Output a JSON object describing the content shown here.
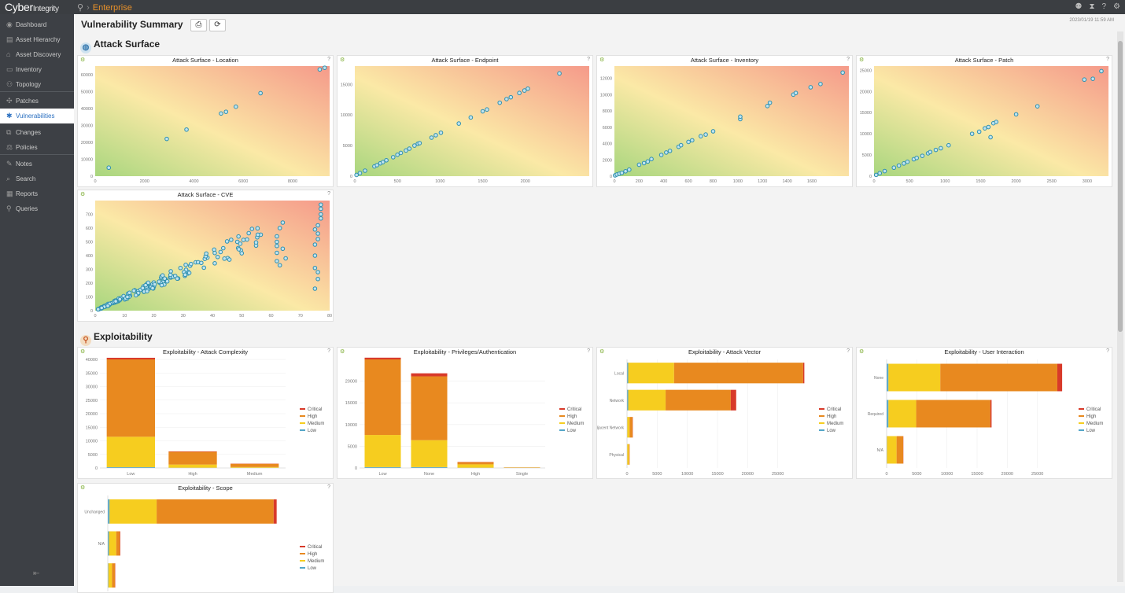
{
  "app": {
    "logo_main": "Cyber",
    "logo_sub": "Integrity",
    "breadcrumb": "Enterprise",
    "timestamp": "2023/01/19 11:59 AM"
  },
  "icons": {
    "pin": "map-pin-icon",
    "top": [
      "user-icon",
      "hourglass-icon",
      "help-icon",
      "settings-icon"
    ]
  },
  "sidebar": {
    "items": [
      {
        "label": "Dashboard",
        "icon": "◉"
      },
      {
        "label": "Asset Hierarchy",
        "icon": "▤"
      },
      {
        "label": "Asset Discovery",
        "icon": "⌂"
      },
      {
        "label": "Inventory",
        "icon": "▭"
      },
      {
        "label": "Topology",
        "icon": "⚇"
      },
      {
        "label": "Patches",
        "icon": "✣"
      },
      {
        "label": "Vulnerabilities",
        "icon": "✱"
      },
      {
        "label": "Changes",
        "icon": "⧉"
      },
      {
        "label": "Policies",
        "icon": "⚖"
      },
      {
        "label": "Notes",
        "icon": "✎"
      },
      {
        "label": "Search",
        "icon": "⌕"
      },
      {
        "label": "Reports",
        "icon": "▦"
      },
      {
        "label": "Queries",
        "icon": "⚲"
      }
    ],
    "active": "Vulnerabilities",
    "collapse": "⇤"
  },
  "page": {
    "title": "Vulnerability Summary",
    "print_icon": "⎙",
    "refresh_icon": "⟳"
  },
  "sections": {
    "attack": "Attack Surface",
    "exploit": "Exploitability"
  },
  "legend": [
    "Critical",
    "High",
    "Medium",
    "Low"
  ],
  "colors": {
    "critical": "#d83a2a",
    "high": "#e8891f",
    "medium": "#f6cd1f",
    "low": "#53a6c8",
    "point": "#2e8fb0"
  },
  "scatter_charts": [
    {
      "title": "Attack Surface - Location",
      "xlim": [
        0,
        9500
      ],
      "ylim": [
        0,
        65000
      ],
      "xticks": [
        0,
        2000,
        4000,
        6000,
        8000
      ],
      "yticks": [
        0,
        10000,
        20000,
        30000,
        40000,
        50000,
        60000
      ],
      "points": [
        [
          550,
          5000
        ],
        [
          2900,
          22000
        ],
        [
          3700,
          27500
        ],
        [
          5100,
          37000
        ],
        [
          5300,
          38000
        ],
        [
          5700,
          41000
        ],
        [
          6700,
          49000
        ],
        [
          9100,
          63000
        ],
        [
          9300,
          64000
        ]
      ]
    },
    {
      "title": "Attack Surface - Endpoint",
      "xlim": [
        0,
        2750
      ],
      "ylim": [
        0,
        18000
      ],
      "xticks": [
        0,
        500,
        1000,
        1500,
        2000
      ],
      "yticks": [
        0,
        5000,
        10000,
        15000
      ],
      "points": [
        [
          20,
          200
        ],
        [
          60,
          500
        ],
        [
          120,
          900
        ],
        [
          230,
          1600
        ],
        [
          260,
          1800
        ],
        [
          300,
          2100
        ],
        [
          330,
          2300
        ],
        [
          370,
          2600
        ],
        [
          450,
          3100
        ],
        [
          500,
          3500
        ],
        [
          540,
          3800
        ],
        [
          600,
          4200
        ],
        [
          640,
          4500
        ],
        [
          700,
          5000
        ],
        [
          740,
          5300
        ],
        [
          760,
          5400
        ],
        [
          900,
          6300
        ],
        [
          950,
          6700
        ],
        [
          1010,
          7100
        ],
        [
          1220,
          8600
        ],
        [
          1360,
          9600
        ],
        [
          1500,
          10600
        ],
        [
          1550,
          10900
        ],
        [
          1700,
          12000
        ],
        [
          1780,
          12600
        ],
        [
          1830,
          12900
        ],
        [
          1930,
          13600
        ],
        [
          1990,
          14000
        ],
        [
          2030,
          14300
        ],
        [
          2400,
          16800
        ]
      ]
    },
    {
      "title": "Attack Surface - Inventory",
      "xlim": [
        0,
        1900
      ],
      "ylim": [
        0,
        13500
      ],
      "xticks": [
        0,
        200,
        400,
        600,
        800,
        1000,
        1200,
        1400,
        1600
      ],
      "yticks": [
        0,
        2000,
        4000,
        6000,
        8000,
        10000,
        12000
      ],
      "points": [
        [
          5,
          100
        ],
        [
          20,
          200
        ],
        [
          40,
          300
        ],
        [
          60,
          400
        ],
        [
          90,
          600
        ],
        [
          120,
          800
        ],
        [
          200,
          1400
        ],
        [
          240,
          1600
        ],
        [
          270,
          1800
        ],
        [
          300,
          2100
        ],
        [
          380,
          2600
        ],
        [
          420,
          2900
        ],
        [
          450,
          3100
        ],
        [
          520,
          3600
        ],
        [
          540,
          3800
        ],
        [
          600,
          4200
        ],
        [
          630,
          4400
        ],
        [
          700,
          4900
        ],
        [
          740,
          5100
        ],
        [
          800,
          5500
        ],
        [
          1020,
          7000
        ],
        [
          1020,
          7300
        ],
        [
          1240,
          8600
        ],
        [
          1260,
          9000
        ],
        [
          1450,
          10000
        ],
        [
          1470,
          10200
        ],
        [
          1590,
          10900
        ],
        [
          1670,
          11300
        ],
        [
          1850,
          12700
        ]
      ]
    },
    {
      "title": "Attack Surface - Patch",
      "xlim": [
        0,
        3300
      ],
      "ylim": [
        0,
        26000
      ],
      "xticks": [
        0,
        500,
        1000,
        1500,
        2000,
        2500,
        3000
      ],
      "yticks": [
        0,
        5000,
        10000,
        15000,
        20000,
        25000
      ],
      "points": [
        [
          30,
          300
        ],
        [
          80,
          700
        ],
        [
          150,
          1200
        ],
        [
          280,
          2000
        ],
        [
          350,
          2500
        ],
        [
          420,
          3000
        ],
        [
          470,
          3400
        ],
        [
          560,
          4000
        ],
        [
          600,
          4300
        ],
        [
          680,
          4800
        ],
        [
          760,
          5400
        ],
        [
          790,
          5700
        ],
        [
          870,
          6200
        ],
        [
          940,
          6600
        ],
        [
          1050,
          7300
        ],
        [
          1380,
          10000
        ],
        [
          1480,
          10500
        ],
        [
          1560,
          11300
        ],
        [
          1610,
          11600
        ],
        [
          1680,
          12500
        ],
        [
          1720,
          12800
        ],
        [
          1640,
          9200
        ],
        [
          2000,
          14600
        ],
        [
          2300,
          16500
        ],
        [
          2960,
          22800
        ],
        [
          3080,
          23000
        ],
        [
          3200,
          24800
        ]
      ]
    },
    {
      "title": "Attack Surface - CVE",
      "xlim": [
        0,
        80
      ],
      "ylim": [
        0,
        800
      ],
      "xticks": [
        0,
        10,
        20,
        30,
        40,
        50,
        60,
        70,
        80
      ],
      "yticks": [
        0,
        100,
        200,
        300,
        400,
        500,
        600,
        700
      ],
      "points": "cve"
    }
  ],
  "bar_charts": [
    {
      "title": "Exploitability - Attack Complexity",
      "orient": "v",
      "cats": [
        "Low",
        "High",
        "Medium"
      ],
      "ymax": 40000,
      "yticks": [
        0,
        5000,
        10000,
        15000,
        20000,
        25000,
        30000,
        35000,
        40000
      ],
      "series": {
        "low": [
          300,
          50,
          30
        ],
        "medium": [
          11200,
          1200,
          300
        ],
        "high": [
          28500,
          4700,
          1200
        ],
        "critical": [
          600,
          150,
          80
        ]
      }
    },
    {
      "title": "Exploitability - Privileges/Authentication",
      "orient": "v",
      "cats": [
        "Low",
        "None",
        "High",
        "Single"
      ],
      "ymax": 25000,
      "yticks": [
        0,
        5000,
        10000,
        15000,
        20000
      ],
      "series": {
        "low": [
          200,
          200,
          30,
          5
        ],
        "medium": [
          7400,
          6200,
          800,
          100
        ],
        "high": [
          17400,
          14700,
          500,
          50
        ],
        "critical": [
          400,
          700,
          60,
          5
        ]
      }
    },
    {
      "title": "Exploitability - Attack Vector",
      "orient": "h",
      "cats": [
        "Local",
        "Network",
        "Adjacent Network",
        "Physical"
      ],
      "xmax": 30000,
      "xticks": [
        0,
        5000,
        10000,
        15000,
        20000,
        25000
      ],
      "series": {
        "low": [
          200,
          200,
          20,
          10
        ],
        "medium": [
          7600,
          6200,
          400,
          300
        ],
        "high": [
          21400,
          10800,
          500,
          120
        ],
        "critical": [
          200,
          900,
          40,
          10
        ]
      }
    },
    {
      "title": "Exploitability - User Interaction",
      "orient": "h",
      "cats": [
        "None",
        "Required",
        "N/A"
      ],
      "xmax": 30000,
      "xticks": [
        0,
        5000,
        10000,
        15000,
        20000,
        25000
      ],
      "series": {
        "low": [
          300,
          300,
          50
        ],
        "medium": [
          8600,
          4600,
          1600
        ],
        "high": [
          19400,
          12300,
          1100
        ],
        "critical": [
          800,
          200,
          30
        ]
      }
    },
    {
      "title": "Exploitability - Scope",
      "orient": "h",
      "cats": [
        "Unchanged",
        "N/A",
        ""
      ],
      "xmax": 30000,
      "xticks": [],
      "series": {
        "low": [
          300,
          200,
          100
        ],
        "medium": [
          7800,
          1200,
          600
        ],
        "high": [
          19400,
          600,
          500
        ],
        "critical": [
          500,
          80,
          50
        ]
      }
    }
  ]
}
